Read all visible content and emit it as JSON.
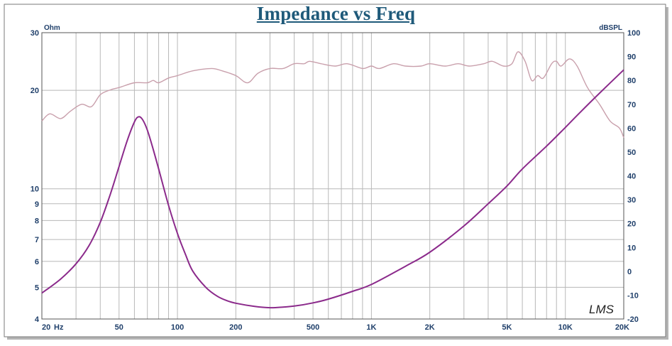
{
  "chart_data": {
    "type": "line",
    "title": "Impedance vs Freq",
    "x_scale": "log",
    "xlim": [
      20,
      20000
    ],
    "x_ticks": [
      {
        "value": 20,
        "label": "20"
      },
      {
        "value": 50,
        "label": "50"
      },
      {
        "value": 100,
        "label": "100"
      },
      {
        "value": 200,
        "label": "200"
      },
      {
        "value": 500,
        "label": "500"
      },
      {
        "value": 1000,
        "label": "1K"
      },
      {
        "value": 2000,
        "label": "2K"
      },
      {
        "value": 5000,
        "label": "5K"
      },
      {
        "value": 10000,
        "label": "10K"
      },
      {
        "value": 20000,
        "label": "20K"
      }
    ],
    "x_unit": "Hz",
    "y_left": {
      "unit": "Ohm",
      "scale": "log",
      "lim": [
        4,
        30
      ],
      "ticks": [
        {
          "value": 30,
          "label": "30"
        },
        {
          "value": 20,
          "label": "20"
        },
        {
          "value": 10,
          "label": "10"
        },
        {
          "value": 9,
          "label": "9"
        },
        {
          "value": 8,
          "label": "8"
        },
        {
          "value": 7,
          "label": "7"
        },
        {
          "value": 6,
          "label": "6"
        },
        {
          "value": 5,
          "label": "5"
        },
        {
          "value": 4,
          "label": "4"
        }
      ]
    },
    "y_right": {
      "unit": "dBSPL",
      "scale": "linear",
      "lim": [
        -20,
        100
      ],
      "ticks": [
        {
          "value": 100,
          "label": "100"
        },
        {
          "value": 90,
          "label": "90"
        },
        {
          "value": 80,
          "label": "80"
        },
        {
          "value": 70,
          "label": "70"
        },
        {
          "value": 60,
          "label": "60"
        },
        {
          "value": 50,
          "label": "50"
        },
        {
          "value": 40,
          "label": "40"
        },
        {
          "value": 30,
          "label": "30"
        },
        {
          "value": 20,
          "label": "20"
        },
        {
          "value": 10,
          "label": "10"
        },
        {
          "value": 0,
          "label": "0"
        },
        {
          "value": -10,
          "label": "-10"
        },
        {
          "value": -20,
          "label": "-20"
        }
      ]
    },
    "grid": true,
    "series": [
      {
        "axis": "left",
        "color": "#8b2a8b",
        "points": [
          [
            20,
            4.8
          ],
          [
            25,
            5.3
          ],
          [
            30,
            5.9
          ],
          [
            35,
            6.7
          ],
          [
            40,
            7.9
          ],
          [
            45,
            9.6
          ],
          [
            50,
            11.7
          ],
          [
            55,
            14.0
          ],
          [
            60,
            16.0
          ],
          [
            63,
            16.6
          ],
          [
            66,
            16.3
          ],
          [
            70,
            15.1
          ],
          [
            75,
            13.2
          ],
          [
            80,
            11.5
          ],
          [
            90,
            8.9
          ],
          [
            100,
            7.3
          ],
          [
            110,
            6.3
          ],
          [
            120,
            5.6
          ],
          [
            140,
            5.0
          ],
          [
            160,
            4.7
          ],
          [
            180,
            4.55
          ],
          [
            200,
            4.47
          ],
          [
            250,
            4.37
          ],
          [
            300,
            4.33
          ],
          [
            350,
            4.35
          ],
          [
            400,
            4.38
          ],
          [
            500,
            4.48
          ],
          [
            600,
            4.6
          ],
          [
            800,
            4.86
          ],
          [
            1000,
            5.1
          ],
          [
            1500,
            5.8
          ],
          [
            2000,
            6.4
          ],
          [
            3000,
            7.7
          ],
          [
            4000,
            9.0
          ],
          [
            5000,
            10.2
          ],
          [
            6000,
            11.5
          ],
          [
            8000,
            13.5
          ],
          [
            10000,
            15.4
          ],
          [
            12000,
            17.2
          ],
          [
            15000,
            19.6
          ],
          [
            20000,
            23.1
          ]
        ]
      },
      {
        "axis": "right",
        "color": "#c9a0ac",
        "points": [
          [
            20,
            63
          ],
          [
            22,
            66
          ],
          [
            25,
            64
          ],
          [
            28,
            67
          ],
          [
            32,
            70
          ],
          [
            36,
            69
          ],
          [
            40,
            74
          ],
          [
            45,
            76
          ],
          [
            50,
            77
          ],
          [
            60,
            79
          ],
          [
            70,
            79
          ],
          [
            75,
            80
          ],
          [
            80,
            79
          ],
          [
            90,
            81
          ],
          [
            100,
            82
          ],
          [
            120,
            84
          ],
          [
            150,
            85
          ],
          [
            170,
            84
          ],
          [
            200,
            82
          ],
          [
            230,
            79
          ],
          [
            260,
            83
          ],
          [
            300,
            85
          ],
          [
            350,
            85
          ],
          [
            400,
            87
          ],
          [
            450,
            87
          ],
          [
            480,
            88
          ],
          [
            550,
            87
          ],
          [
            650,
            86
          ],
          [
            750,
            87
          ],
          [
            900,
            85
          ],
          [
            1000,
            86
          ],
          [
            1100,
            85
          ],
          [
            1300,
            87
          ],
          [
            1500,
            86
          ],
          [
            1800,
            86
          ],
          [
            2000,
            87
          ],
          [
            2400,
            86
          ],
          [
            2800,
            87
          ],
          [
            3200,
            86
          ],
          [
            3800,
            87
          ],
          [
            4200,
            88
          ],
          [
            4800,
            86
          ],
          [
            5300,
            87
          ],
          [
            5700,
            92
          ],
          [
            6200,
            88
          ],
          [
            6700,
            80
          ],
          [
            7200,
            82
          ],
          [
            7700,
            81
          ],
          [
            8500,
            87
          ],
          [
            9000,
            88
          ],
          [
            9500,
            86
          ],
          [
            10500,
            89
          ],
          [
            11500,
            86
          ],
          [
            13000,
            77
          ],
          [
            15000,
            70
          ],
          [
            17000,
            63
          ],
          [
            19000,
            60
          ],
          [
            20000,
            56
          ]
        ]
      }
    ],
    "watermark": "LMS"
  }
}
